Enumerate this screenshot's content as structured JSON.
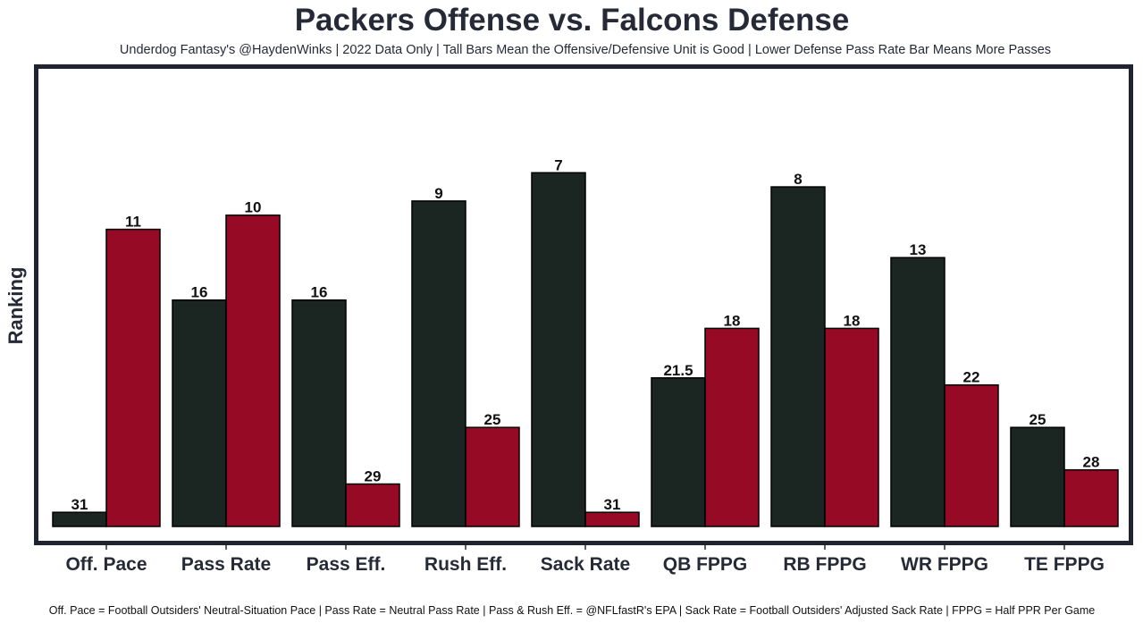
{
  "chart_data": {
    "type": "bar",
    "title": "Packers Offense vs. Falcons Defense",
    "subtitle": "Underdog Fantasy's @HaydenWinks | 2022 Data Only | Tall Bars Mean the Offensive/Defensive Unit is Good | Lower Defense Pass Rate Bar Means More Passes",
    "footer": "Off. Pace = Football Outsiders' Neutral-Situation Pace | Pass Rate = Neutral Pass Rate | Pass & Rush Eff. = @NFLfastR's EPA | Sack Rate = Football Outsiders' Adjusted Sack Rate | FPPG = Half PPR Per Game",
    "xlabel": "",
    "ylabel": "Ranking",
    "y_inverted": true,
    "ylim": [
      32,
      1
    ],
    "grid": false,
    "categories": [
      "Off. Pace",
      "Pass Rate",
      "Pass Eff.",
      "Rush Eff.",
      "Sack Rate",
      "QB FPPG",
      "RB FPPG",
      "WR FPPG",
      "TE FPPG"
    ],
    "series": [
      {
        "values": [
          31,
          16,
          16,
          9,
          7,
          21.5,
          8,
          13,
          25
        ],
        "color": "#1b2622"
      },
      {
        "values": [
          11,
          10,
          29,
          25,
          31,
          18,
          18,
          22,
          28
        ],
        "color": "#960a26"
      }
    ],
    "frame_color": "#1f2430"
  }
}
